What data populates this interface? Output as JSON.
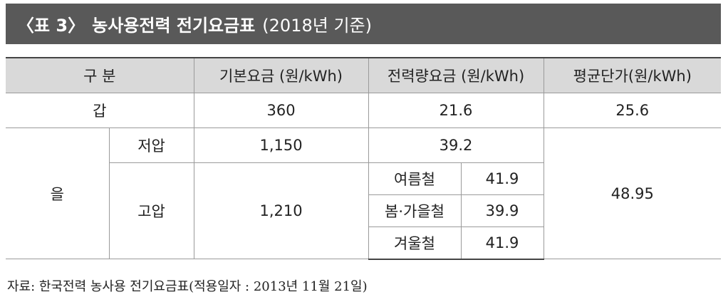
{
  "header": {
    "label": "〈표 3〉",
    "title": "농사용전력 전기요금표",
    "note": "(2018년 기준)"
  },
  "table": {
    "columns": [
      "구 분",
      "기본요금 (원/kWh)",
      "전력량요금 (원/kWh)",
      "평균단가(원/kWh)"
    ],
    "rows": [
      {
        "class": "갑",
        "base": "360",
        "energy": "21.6",
        "average": "25.6"
      },
      {
        "class": "을",
        "average": "48.95",
        "subrows": [
          {
            "voltage": "저압",
            "base": "1,150",
            "energy": "39.2"
          },
          {
            "voltage": "고압",
            "base": "1,210",
            "seasons": [
              {
                "season": "여름철",
                "energy": "41.9"
              },
              {
                "season": "봄·가을철",
                "energy": "39.9"
              },
              {
                "season": "겨울철",
                "energy": "41.9"
              }
            ]
          }
        ]
      }
    ]
  },
  "source": "자료: 한국전력 농사용 전기요금표(적용일자 : 2013년 11월 21일)"
}
